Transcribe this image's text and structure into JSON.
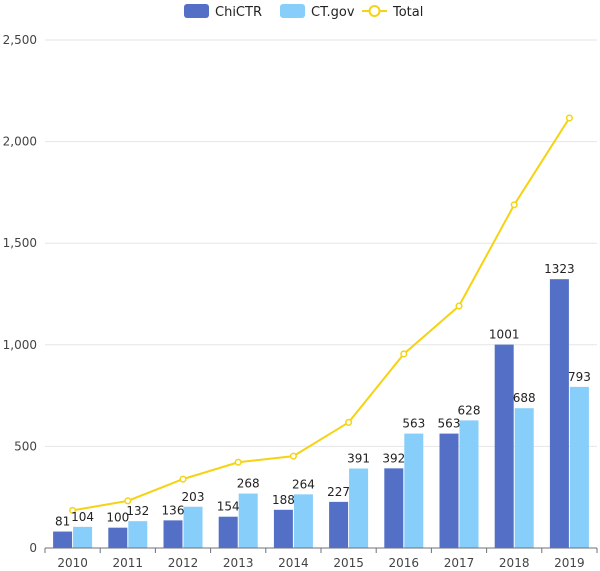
{
  "chart_data": {
    "type": "bar",
    "categories": [
      "2010",
      "2011",
      "2012",
      "2013",
      "2014",
      "2015",
      "2016",
      "2017",
      "2018",
      "2019"
    ],
    "series": [
      {
        "name": "ChiCTR",
        "type": "bar",
        "color": "#5470c6",
        "values": [
          81,
          100,
          136,
          154,
          188,
          227,
          392,
          563,
          1001,
          1323
        ]
      },
      {
        "name": "CT.gov",
        "type": "bar",
        "color": "#87cefa",
        "values": [
          104,
          132,
          203,
          268,
          264,
          391,
          563,
          628,
          688,
          793
        ]
      },
      {
        "name": "Total",
        "type": "line",
        "color": "#f5d312",
        "values": [
          185,
          232,
          339,
          422,
          452,
          618,
          955,
          1191,
          1689,
          2116
        ]
      }
    ],
    "y_ticks": [
      "0",
      "500",
      "1,000",
      "1,500",
      "2,000",
      "2,500"
    ],
    "ylim": [
      0,
      2500
    ],
    "grid": true,
    "legend_position": "top-center"
  }
}
